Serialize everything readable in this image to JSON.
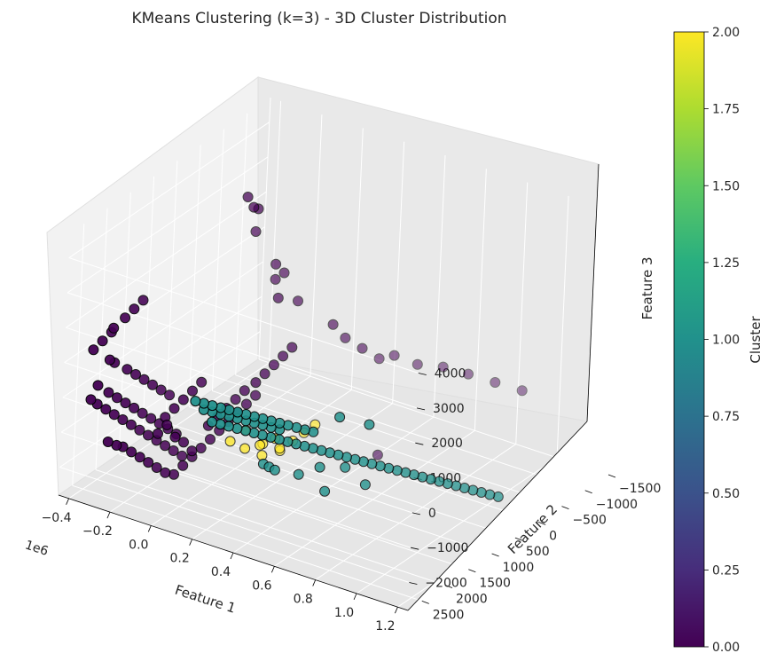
{
  "chart_data": {
    "type": "scatter",
    "projection": "3d",
    "title": "KMeans Clustering (k=3) - 3D Cluster Distribution",
    "xlabel": "Feature 1",
    "ylabel": "Feature 2",
    "zlabel": "Feature 3",
    "x_offset_label": "1e6",
    "xlim": [
      -0.45,
      1.25
    ],
    "ylim": [
      -1500,
      2800
    ],
    "zlim": [
      -2800,
      4700
    ],
    "x_ticks": [
      "−0.4",
      "−0.2",
      "0.0",
      "0.2",
      "0.4",
      "0.6",
      "0.8",
      "1.0",
      "1.2"
    ],
    "y_ticks": [
      "−1500",
      "−1000",
      "−500",
      "0",
      "500",
      "1000",
      "1500",
      "2000",
      "2500"
    ],
    "z_ticks": [
      "−2000",
      "−1000",
      "0",
      "1000",
      "2000",
      "3000",
      "4000"
    ],
    "grid": true,
    "colormap": "viridis",
    "colorbar": {
      "label": "Cluster",
      "min": 0.0,
      "max": 2.0,
      "ticks": [
        "0.00",
        "0.25",
        "0.50",
        "0.75",
        "1.00",
        "1.25",
        "1.50",
        "1.75",
        "2.00"
      ]
    },
    "cluster_colors": {
      "0": "#440154",
      "1": "#21918c",
      "2": "#fde725"
    },
    "series": [
      {
        "cluster": 0,
        "points": [
          [
            -0.4,
            2400,
            1100
          ],
          [
            -0.38,
            2300,
            1300
          ],
          [
            -0.36,
            2200,
            1500
          ],
          [
            -0.34,
            2250,
            1700
          ],
          [
            -0.32,
            2100,
            1900
          ],
          [
            -0.3,
            2000,
            2100
          ],
          [
            -0.28,
            1900,
            2300
          ],
          [
            -0.33,
            2350,
            900
          ],
          [
            -0.35,
            2150,
            600
          ],
          [
            -0.31,
            2050,
            400
          ],
          [
            -0.29,
            1950,
            200
          ],
          [
            -0.27,
            1850,
            0
          ],
          [
            -0.25,
            1750,
            -200
          ],
          [
            -0.23,
            1650,
            -400
          ],
          [
            -0.21,
            1550,
            -600
          ],
          [
            -0.36,
            2450,
            200
          ],
          [
            -0.34,
            2300,
            -100
          ],
          [
            -0.32,
            2200,
            -300
          ],
          [
            -0.3,
            2100,
            -500
          ],
          [
            -0.28,
            2000,
            -700
          ],
          [
            -0.26,
            1900,
            -900
          ],
          [
            -0.24,
            1800,
            -1100
          ],
          [
            -0.22,
            1700,
            -1300
          ],
          [
            -0.2,
            1600,
            -1500
          ],
          [
            -0.18,
            1500,
            -1700
          ],
          [
            -0.38,
            2500,
            -200
          ],
          [
            -0.37,
            2400,
            -400
          ],
          [
            -0.35,
            2300,
            -600
          ],
          [
            -0.33,
            2200,
            -800
          ],
          [
            -0.31,
            2100,
            -1000
          ],
          [
            -0.29,
            2000,
            -1200
          ],
          [
            -0.27,
            1900,
            -1400
          ],
          [
            -0.25,
            1800,
            -1600
          ],
          [
            -0.23,
            1700,
            -1800
          ],
          [
            -0.21,
            1600,
            -2000
          ],
          [
            -0.19,
            1500,
            -2200
          ],
          [
            -0.17,
            1400,
            -2400
          ],
          [
            -0.26,
            2300,
            -1500
          ],
          [
            -0.24,
            2200,
            -1700
          ],
          [
            -0.22,
            2100,
            -1900
          ],
          [
            -0.2,
            2000,
            -2100
          ],
          [
            -0.18,
            1900,
            -2300
          ],
          [
            -0.16,
            1800,
            -2500
          ],
          [
            -0.3,
            2450,
            -1300
          ],
          [
            -0.28,
            2350,
            -1450
          ],
          [
            -0.14,
            1700,
            -2600
          ],
          [
            -0.12,
            1600,
            -2400
          ],
          [
            -0.1,
            1500,
            -2200
          ],
          [
            -0.08,
            1400,
            -2000
          ],
          [
            -0.06,
            1300,
            -1800
          ],
          [
            -0.04,
            1200,
            -1600
          ],
          [
            -0.02,
            1100,
            -1400
          ],
          [
            0.0,
            1000,
            -1200
          ],
          [
            0.02,
            900,
            -1000
          ],
          [
            0.04,
            800,
            -800
          ],
          [
            -0.15,
            1900,
            -800
          ],
          [
            -0.13,
            1800,
            -600
          ],
          [
            -0.11,
            1700,
            -400
          ],
          [
            -0.09,
            1600,
            -200
          ],
          [
            -0.07,
            1500,
            0
          ],
          [
            -0.16,
            2000,
            -1200
          ],
          [
            -0.14,
            1900,
            -1000
          ],
          [
            -0.12,
            1800,
            -1400
          ],
          [
            -0.1,
            1700,
            -1600
          ],
          [
            -0.08,
            1600,
            -1900
          ],
          [
            -0.05,
            1400,
            -1300
          ],
          [
            -0.03,
            1300,
            -1100
          ],
          [
            -0.01,
            1200,
            -900
          ],
          [
            0.01,
            1100,
            -700
          ],
          [
            0.03,
            1000,
            -500
          ],
          [
            0.06,
            900,
            -300
          ],
          [
            0.08,
            800,
            -100
          ],
          [
            0.1,
            700,
            100
          ],
          [
            0.12,
            600,
            300
          ],
          [
            0.14,
            500,
            500
          ],
          [
            -0.06,
            700,
            4600
          ],
          [
            -0.04,
            650,
            4300
          ],
          [
            -0.05,
            500,
            4100
          ],
          [
            -0.08,
            400,
            3300
          ],
          [
            -0.02,
            200,
            2300
          ],
          [
            0.0,
            100,
            2000
          ],
          [
            0.02,
            300,
            1500
          ],
          [
            -0.03,
            150,
            1800
          ],
          [
            0.05,
            0,
            1200
          ],
          [
            0.18,
            -200,
            600
          ],
          [
            0.22,
            -300,
            200
          ],
          [
            0.26,
            -500,
            -200
          ],
          [
            0.3,
            -700,
            -600
          ],
          [
            0.35,
            -800,
            -500
          ],
          [
            0.42,
            -1000,
            -800
          ],
          [
            0.5,
            -1200,
            -900
          ],
          [
            0.6,
            -1300,
            -1000
          ],
          [
            0.72,
            -1350,
            -1050
          ],
          [
            0.84,
            -1400,
            -1100
          ],
          [
            0.4,
            -300,
            -2800
          ]
        ]
      },
      {
        "cluster": 1,
        "points": [
          [
            0.1,
            2400,
            600
          ],
          [
            0.13,
            2350,
            550
          ],
          [
            0.16,
            2300,
            500
          ],
          [
            0.19,
            2250,
            450
          ],
          [
            0.22,
            2200,
            400
          ],
          [
            0.25,
            2150,
            350
          ],
          [
            0.28,
            2100,
            300
          ],
          [
            0.31,
            2050,
            250
          ],
          [
            0.34,
            2000,
            200
          ],
          [
            0.37,
            1950,
            150
          ],
          [
            0.4,
            1900,
            100
          ],
          [
            0.43,
            1850,
            50
          ],
          [
            0.46,
            1800,
            0
          ],
          [
            0.49,
            1750,
            -50
          ],
          [
            0.52,
            1700,
            -100
          ],
          [
            0.12,
            2300,
            300
          ],
          [
            0.15,
            2250,
            250
          ],
          [
            0.18,
            2200,
            200
          ],
          [
            0.21,
            2150,
            150
          ],
          [
            0.24,
            2100,
            100
          ],
          [
            0.27,
            2050,
            50
          ],
          [
            0.3,
            2000,
            0
          ],
          [
            0.33,
            1950,
            -50
          ],
          [
            0.36,
            1900,
            -100
          ],
          [
            0.39,
            1850,
            -150
          ],
          [
            0.14,
            2200,
            -100
          ],
          [
            0.17,
            2150,
            -150
          ],
          [
            0.2,
            2100,
            -200
          ],
          [
            0.23,
            2050,
            -250
          ],
          [
            0.26,
            2000,
            -300
          ],
          [
            0.29,
            1950,
            -350
          ],
          [
            0.32,
            1900,
            -400
          ],
          [
            0.35,
            1850,
            -450
          ],
          [
            0.38,
            1800,
            -500
          ],
          [
            0.41,
            1750,
            -550
          ],
          [
            0.44,
            1700,
            -600
          ],
          [
            0.47,
            1650,
            -650
          ],
          [
            0.5,
            1600,
            -700
          ],
          [
            0.53,
            1550,
            -750
          ],
          [
            0.56,
            1500,
            -800
          ],
          [
            0.59,
            1450,
            -850
          ],
          [
            0.62,
            1400,
            -900
          ],
          [
            0.65,
            1350,
            -950
          ],
          [
            0.68,
            1300,
            -1000
          ],
          [
            0.71,
            1250,
            -1050
          ],
          [
            0.74,
            1200,
            -1100
          ],
          [
            0.77,
            1150,
            -1150
          ],
          [
            0.8,
            1100,
            -1200
          ],
          [
            0.83,
            1050,
            -1250
          ],
          [
            0.86,
            1000,
            -1300
          ],
          [
            0.89,
            950,
            -1350
          ],
          [
            0.92,
            900,
            -1400
          ],
          [
            0.95,
            850,
            -1450
          ],
          [
            0.98,
            800,
            -1500
          ],
          [
            1.01,
            750,
            -1550
          ],
          [
            1.04,
            700,
            -1600
          ],
          [
            1.07,
            650,
            -1650
          ],
          [
            1.1,
            600,
            -1700
          ],
          [
            1.13,
            550,
            -1750
          ],
          [
            1.16,
            500,
            -1800
          ],
          [
            0.6,
            1500,
            300
          ],
          [
            0.7,
            1300,
            100
          ],
          [
            0.55,
            1100,
            -1600
          ],
          [
            0.45,
            1200,
            -1700
          ],
          [
            0.3,
            1500,
            -1800
          ],
          [
            0.25,
            1400,
            -1900
          ],
          [
            0.2,
            1300,
            -2000
          ],
          [
            0.35,
            1200,
            -2100
          ],
          [
            0.5,
            1300,
            -2200
          ],
          [
            0.65,
            1100,
            -1900
          ]
        ]
      },
      {
        "cluster": 2,
        "points": [
          [
            -0.05,
            900,
            -2200
          ],
          [
            0.0,
            800,
            -2400
          ],
          [
            0.05,
            700,
            -2300
          ],
          [
            0.1,
            600,
            -2100
          ],
          [
            0.02,
            500,
            -2500
          ],
          [
            0.08,
            400,
            -2600
          ],
          [
            0.12,
            300,
            -2400
          ],
          [
            0.15,
            200,
            -2200
          ],
          [
            0.04,
            600,
            -2700
          ],
          [
            0.18,
            100,
            -2000
          ],
          [
            -0.02,
            700,
            -2000
          ],
          [
            0.06,
            300,
            -2800
          ]
        ]
      }
    ]
  }
}
